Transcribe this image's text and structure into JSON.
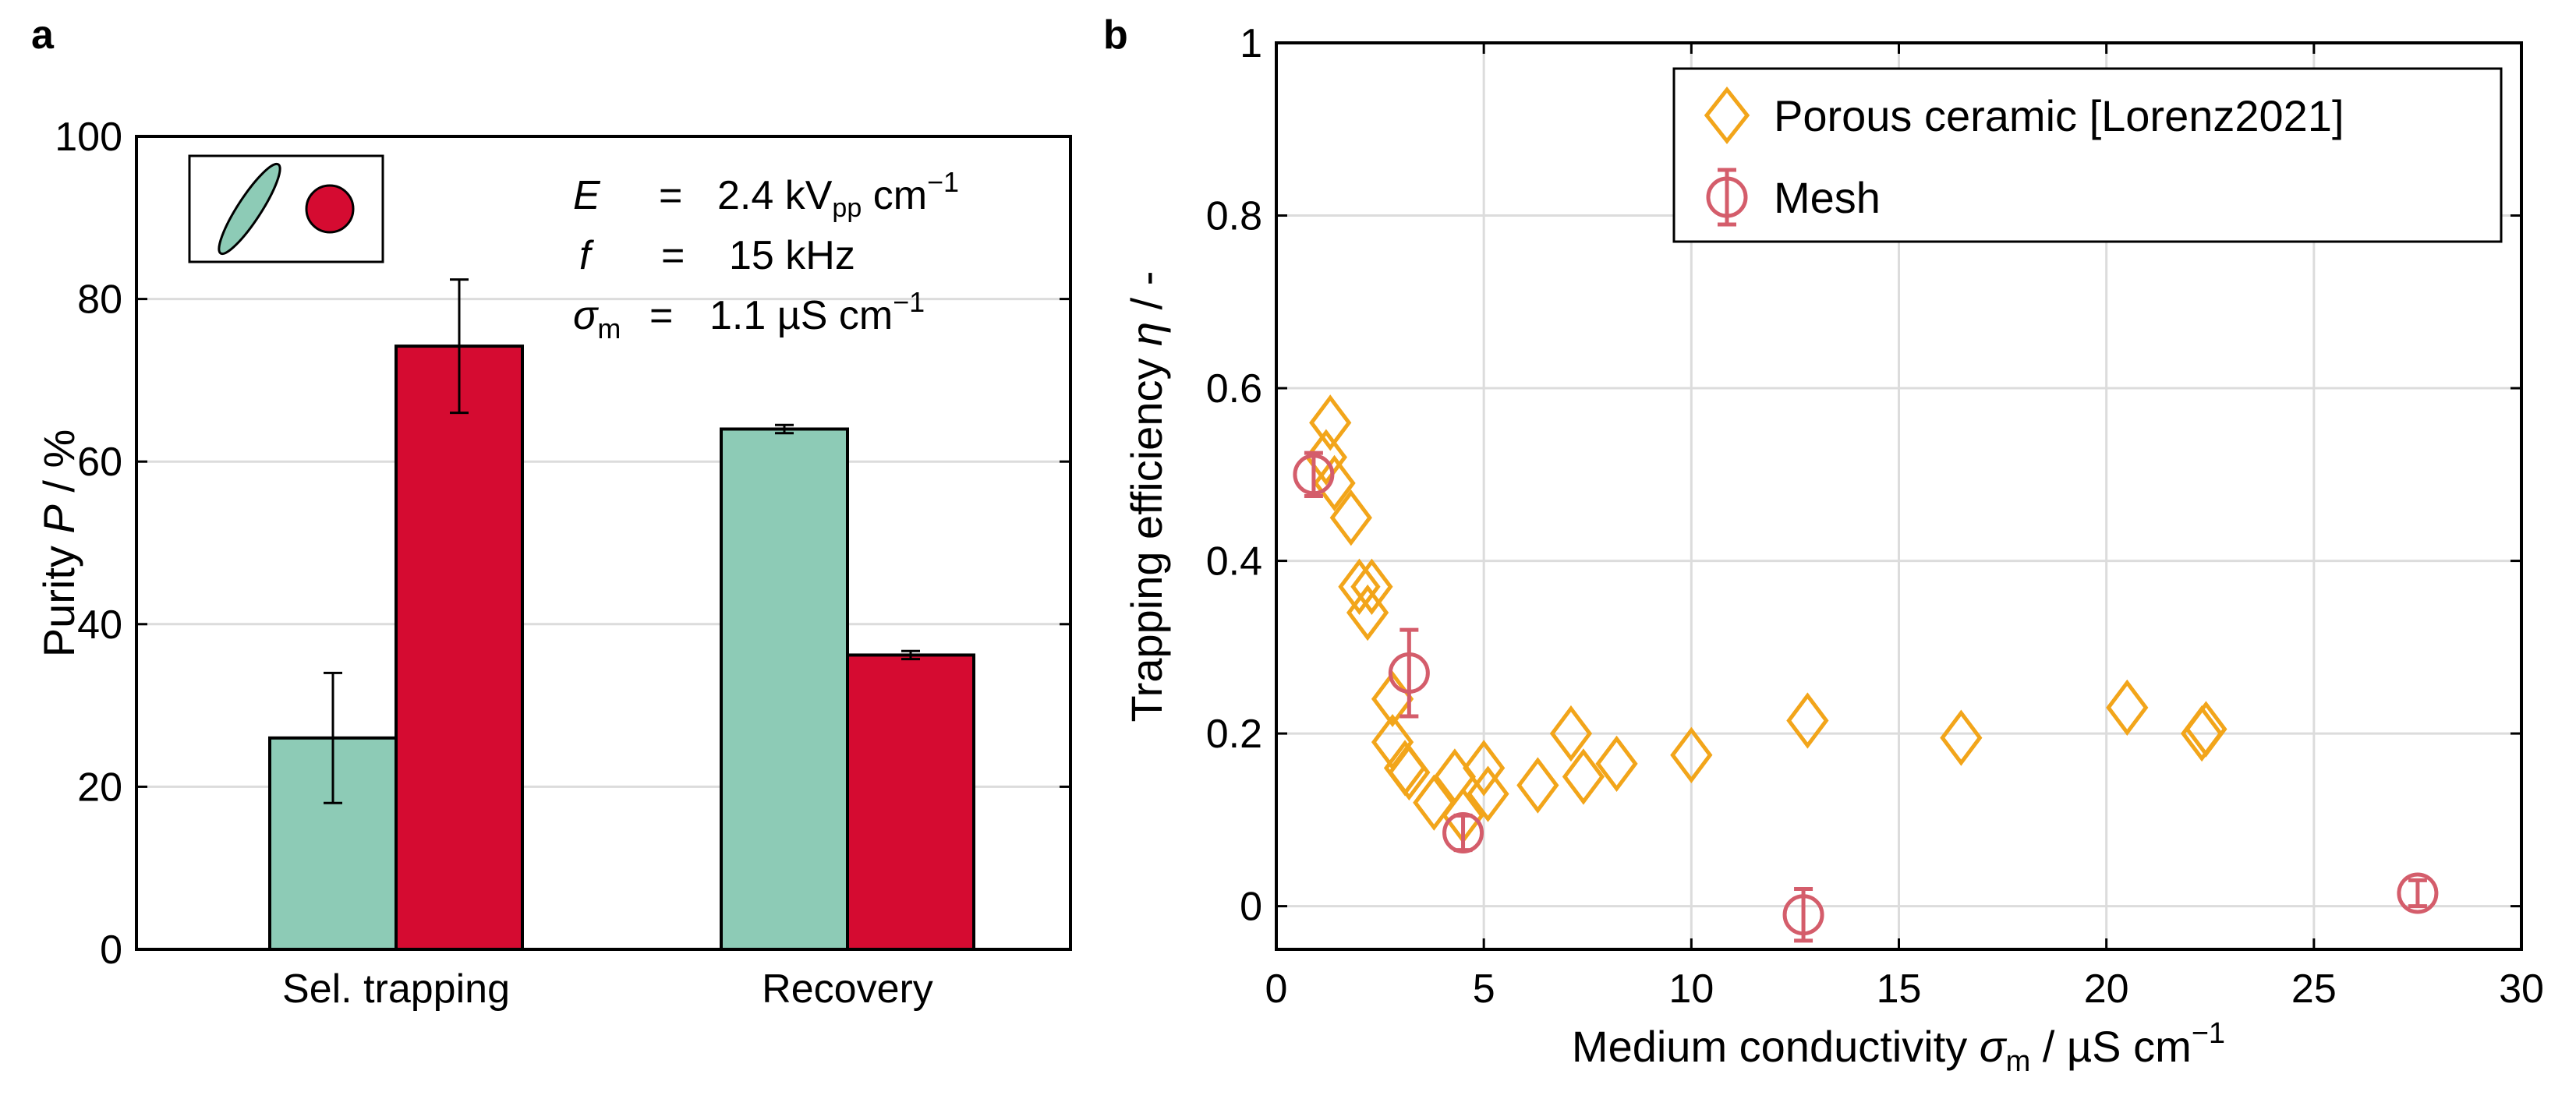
{
  "panels": {
    "a": {
      "label": "a"
    },
    "b": {
      "label": "b"
    }
  },
  "colors": {
    "teal": "#8dcbb6",
    "red": "#d50b31",
    "orange": "#f2a51a",
    "mesh": "#d45d6b",
    "grid": "#dcdcdc"
  },
  "annotation": {
    "E_sym": "E",
    "E_eq": "=",
    "E_value": "2.4 kV",
    "E_sub": "pp",
    "E_unit": " cm",
    "E_exp": "−1",
    "f_sym": "f",
    "f_eq": "=",
    "f_value": "15 kHz",
    "s_sym": "σ",
    "s_sub": "m",
    "s_eq": "=",
    "s_value": "1.1 µS cm",
    "s_exp": "−1"
  },
  "chart_data": [
    {
      "type": "bar",
      "panel": "a",
      "categories": [
        "Sel. trapping",
        "Recovery"
      ],
      "series": [
        {
          "name": "elongated cells",
          "color": "#8dcbb6",
          "values": [
            26,
            64
          ],
          "errors": [
            8,
            0.5
          ]
        },
        {
          "name": "spherical cells",
          "color": "#d50b31",
          "values": [
            74.2,
            36.2
          ],
          "errors": [
            8.2,
            0.5
          ]
        }
      ],
      "yticks": [
        0,
        20,
        40,
        60,
        80,
        100
      ],
      "ylim": [
        0,
        100
      ],
      "ylabel_prefix": "Purity ",
      "ylabel_var": "P",
      "ylabel_suffix": "  / %",
      "legend_position": "top-left",
      "grid": true
    },
    {
      "type": "scatter",
      "panel": "b",
      "xlim": [
        0,
        30
      ],
      "ylim": [
        -0.05,
        1
      ],
      "xticks": [
        0,
        5,
        10,
        15,
        20,
        25,
        30
      ],
      "yticks": [
        0,
        0.2,
        0.4,
        0.6,
        0.8,
        1
      ],
      "ytick_labels": [
        "0",
        "0.2",
        "0.4",
        "0.6",
        "0.8",
        "1"
      ],
      "xlabel_prefix": "Medium conductivity ",
      "xlabel_var": "σ",
      "xlabel_sub": "m",
      "xlabel_unit": " / µS cm",
      "xlabel_exp": "−1",
      "ylabel_prefix": "Trapping efficiency ",
      "ylabel_var": "η",
      "ylabel_suffix": " / -",
      "legend_position": "top-right",
      "grid": true,
      "series": [
        {
          "name": "Porous ceramic [Lorenz2021]",
          "marker": "diamond",
          "color": "#f2a51a",
          "points": [
            [
              1.3,
              0.56
            ],
            [
              1.2,
              0.52
            ],
            [
              1.4,
              0.49
            ],
            [
              1.8,
              0.45
            ],
            [
              2.0,
              0.37
            ],
            [
              2.3,
              0.37
            ],
            [
              2.2,
              0.34
            ],
            [
              2.8,
              0.24
            ],
            [
              2.8,
              0.19
            ],
            [
              3.1,
              0.16
            ],
            [
              3.2,
              0.155
            ],
            [
              3.8,
              0.12
            ],
            [
              4.3,
              0.15
            ],
            [
              4.5,
              0.105
            ],
            [
              5.0,
              0.16
            ],
            [
              5.1,
              0.13
            ],
            [
              6.3,
              0.14
            ],
            [
              7.1,
              0.2
            ],
            [
              7.4,
              0.15
            ],
            [
              8.2,
              0.165
            ],
            [
              10.0,
              0.175
            ],
            [
              12.8,
              0.215
            ],
            [
              16.5,
              0.195
            ],
            [
              20.5,
              0.23
            ],
            [
              22.3,
              0.2
            ],
            [
              22.4,
              0.205
            ]
          ]
        },
        {
          "name": "Mesh",
          "marker": "circle-errorbar",
          "color": "#d45d6b",
          "points": [
            {
              "x": 0.9,
              "y": 0.5,
              "err": 0.025
            },
            {
              "x": 3.2,
              "y": 0.27,
              "err": 0.05
            },
            {
              "x": 4.5,
              "y": 0.085,
              "err": 0.02
            },
            {
              "x": 12.7,
              "y": -0.01,
              "err": 0.03
            },
            {
              "x": 27.5,
              "y": 0.015,
              "err": 0.015
            }
          ]
        }
      ]
    }
  ]
}
